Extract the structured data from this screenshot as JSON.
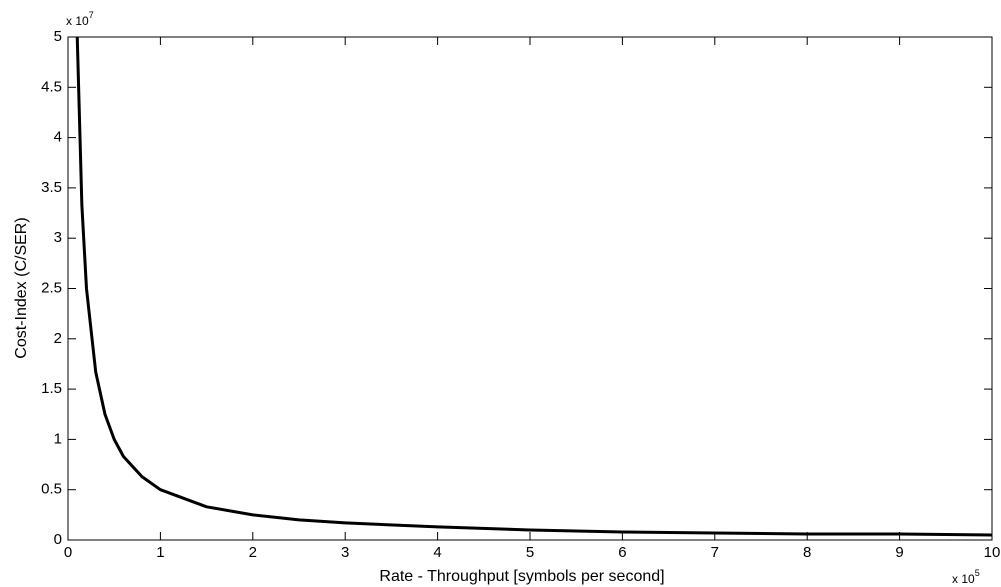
{
  "chart_data": {
    "type": "line",
    "x_label": "Rate - Throughput [symbols per second]",
    "y_label": "Cost-Index (C/SER)",
    "x_multiplier": {
      "base": "x 10",
      "exponent": "5"
    },
    "y_multiplier": {
      "base": "x 10",
      "exponent": "7"
    },
    "x": [
      0.1,
      0.15,
      0.2,
      0.3,
      0.4,
      0.5,
      0.6,
      0.8,
      1,
      1.5,
      2,
      2.5,
      3,
      4,
      5,
      6,
      7,
      8,
      9,
      10
    ],
    "series": [
      {
        "color": "#000000",
        "values": [
          5,
          3.33,
          2.5,
          1.67,
          1.25,
          1,
          0.83,
          0.63,
          0.5,
          0.33,
          0.25,
          0.2,
          0.17,
          0.13,
          0.1,
          0.08,
          0.07,
          0.06,
          0.06,
          0.05
        ]
      }
    ],
    "xlim": [
      0,
      10
    ],
    "ylim": [
      0,
      5
    ],
    "xticks": [
      0,
      1,
      2,
      3,
      4,
      5,
      6,
      7,
      8,
      9,
      10
    ],
    "yticks": [
      0,
      0.5,
      1,
      1.5,
      2,
      2.5,
      3,
      3.5,
      4,
      4.5,
      5
    ],
    "grid": false
  }
}
